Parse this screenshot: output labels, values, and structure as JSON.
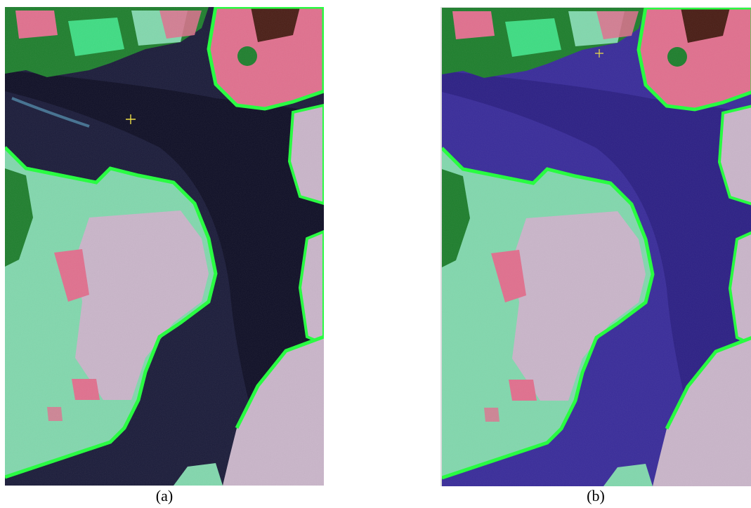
{
  "figure": {
    "panels": [
      {
        "caption": "(a)",
        "water_color": "#1b1c3a",
        "shade": "#0d0d22"
      },
      {
        "caption": "(b)",
        "water_color": "#3a2d9a",
        "shade": "#281d7c"
      }
    ],
    "colors": {
      "vegetation": "#3fdc83",
      "forest": "#1f7f2e",
      "bright_edge": "#22ff3c",
      "bare_soil": "#e0708e",
      "pale_field": "#c9b5c9",
      "grass": "#82d7ad"
    }
  }
}
